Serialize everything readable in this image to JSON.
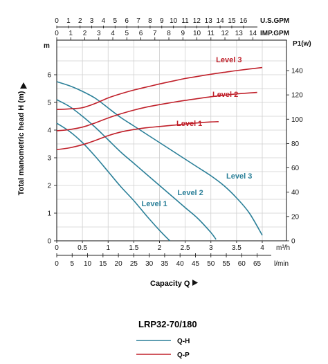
{
  "chart_data": {
    "type": "line",
    "model": "LRP32-70/180",
    "xlabel": "Capacity Q",
    "ylabel": "Total manometric head H (m)",
    "ylabel_right": "P1(w)",
    "h_unit": "m",
    "x_axes": {
      "us_gpm": {
        "label": "U.S.GPM",
        "ticks": [
          "0",
          "1",
          "2",
          "3",
          "4",
          "5",
          "6",
          "7",
          "8",
          "9",
          "10",
          "11",
          "12",
          "13",
          "14",
          "15",
          "16"
        ]
      },
      "imp_gpm": {
        "label": "IMP.GPM",
        "ticks": [
          "0",
          "1",
          "2",
          "3",
          "4",
          "5",
          "6",
          "7",
          "8",
          "9",
          "10",
          "11",
          "12",
          "13",
          "14"
        ]
      },
      "m3h": {
        "label": "m³/h",
        "ticks": [
          "0",
          "0.5",
          "1",
          "1.5",
          "2",
          "2.5",
          "3",
          "3.5",
          "4"
        ]
      },
      "lmin": {
        "label": "l/min",
        "ticks": [
          "0",
          "5",
          "10",
          "15",
          "20",
          "25",
          "30",
          "35",
          "40",
          "45",
          "50",
          "55",
          "60",
          "65"
        ]
      }
    },
    "xlim_m3h": [
      0,
      4.2
    ],
    "ylim_h": [
      0,
      7.2
    ],
    "y_ticks_h": [
      "0",
      "1",
      "2",
      "3",
      "4",
      "5",
      "6"
    ],
    "ylim_p": [
      0,
      160
    ],
    "y_ticks_p": [
      "0",
      "20",
      "40",
      "60",
      "80",
      "100",
      "120",
      "140"
    ],
    "qh_series": [
      {
        "name": "Level 1",
        "x": [
          0,
          0.25,
          0.5,
          0.75,
          1.0,
          1.25,
          1.5,
          1.75,
          2.0,
          2.2
        ],
        "y": [
          4.25,
          3.95,
          3.55,
          3.05,
          2.5,
          1.95,
          1.45,
          0.9,
          0.38,
          0.0
        ]
      },
      {
        "name": "Level 2",
        "x": [
          0,
          0.25,
          0.5,
          0.75,
          1.0,
          1.25,
          1.5,
          1.75,
          2.0,
          2.25,
          2.5,
          2.75,
          3.0,
          3.1
        ],
        "y": [
          5.1,
          4.85,
          4.5,
          4.1,
          3.65,
          3.2,
          2.8,
          2.4,
          2.0,
          1.6,
          1.2,
          0.8,
          0.3,
          0.05
        ]
      },
      {
        "name": "Level 3",
        "x": [
          0,
          0.25,
          0.5,
          0.75,
          1.0,
          1.25,
          1.5,
          1.75,
          2.0,
          2.25,
          2.5,
          2.75,
          3.0,
          3.25,
          3.5,
          3.75,
          4.0
        ],
        "y": [
          5.75,
          5.6,
          5.4,
          5.15,
          4.8,
          4.45,
          4.15,
          3.85,
          3.55,
          3.25,
          2.95,
          2.65,
          2.35,
          2.0,
          1.55,
          1.0,
          0.2
        ]
      }
    ],
    "qp_series": [
      {
        "name": "Level 1",
        "x": [
          0,
          0.25,
          0.5,
          0.75,
          1.0,
          1.25,
          1.5,
          1.75,
          2.0,
          2.25,
          2.5,
          2.75,
          3.0,
          3.15
        ],
        "y": [
          75,
          76.5,
          79,
          82.5,
          86.5,
          89.5,
          91.5,
          93,
          94,
          95,
          96,
          97,
          97.8,
          98
        ]
      },
      {
        "name": "Level 2",
        "x": [
          0,
          0.25,
          0.5,
          0.75,
          1.0,
          1.25,
          1.5,
          1.75,
          2.0,
          2.25,
          2.5,
          2.75,
          3.0,
          3.25,
          3.5,
          3.75,
          3.9
        ],
        "y": [
          90.5,
          91.5,
          93.5,
          97,
          101,
          104.5,
          107.5,
          110,
          112,
          113.8,
          115.5,
          117,
          118.5,
          119.7,
          120.8,
          121.6,
          122
        ]
      },
      {
        "name": "Level 3",
        "x": [
          0,
          0.25,
          0.5,
          0.75,
          1.0,
          1.25,
          1.5,
          1.75,
          2.0,
          2.25,
          2.5,
          2.75,
          3.0,
          3.25,
          3.5,
          3.75,
          4.0
        ],
        "y": [
          108,
          108.5,
          109.5,
          113,
          117.5,
          121,
          124,
          126.5,
          129,
          131.3,
          133.5,
          135.3,
          137,
          138.5,
          140,
          141.3,
          142.5
        ]
      }
    ],
    "legend": [
      {
        "label": "Q-H",
        "color": "#2a7f98"
      },
      {
        "label": "Q-P",
        "color": "#c0202a"
      }
    ],
    "qh_color": "#2a7f98",
    "qp_color": "#c0202a"
  }
}
